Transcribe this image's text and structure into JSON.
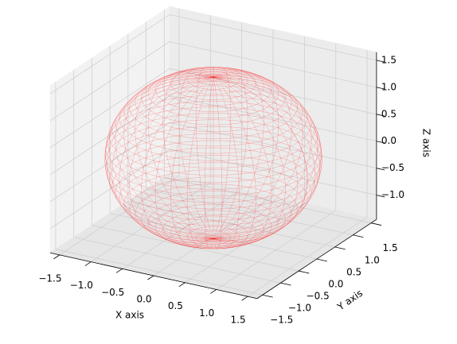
{
  "chart_data": {
    "type": "wireframe_sphere",
    "radius": 1.5,
    "center": [
      0,
      0,
      0
    ],
    "wireframe_lines": 40,
    "color": "#ff0000",
    "view": {
      "elev": 30,
      "azim": -60
    },
    "grid": true,
    "xlabel": "X axis",
    "ylabel": "Y axis",
    "zlabel": "Z axis",
    "xlim": [
      -1.65,
      1.65
    ],
    "ylim": [
      -1.65,
      1.65
    ],
    "zlim": [
      -1.45,
      1.65
    ],
    "xticks": [
      {
        "value": -1.5,
        "label": "−1.5"
      },
      {
        "value": -1.0,
        "label": "−1.0"
      },
      {
        "value": -0.5,
        "label": "−0.5"
      },
      {
        "value": 0,
        "label": "0.0"
      },
      0.5,
      {
        "value": 1.0,
        "label": "1.0"
      },
      1.5
    ],
    "yticks": [
      {
        "value": -1.5,
        "label": "−1.5"
      },
      {
        "value": -1.0,
        "label": "−1.0"
      },
      {
        "value": -0.5,
        "label": "−0.5"
      },
      {
        "value": 0,
        "label": "0.0"
      },
      0.5,
      {
        "value": 1.0,
        "label": "1.0"
      },
      1.5
    ],
    "zticks": [
      {
        "value": -1.0,
        "label": "−1.0"
      },
      {
        "value": -0.5,
        "label": "−0.5"
      },
      {
        "value": 0,
        "label": "0.0"
      },
      0.5,
      {
        "value": 1.0,
        "label": "1.0"
      },
      1.5
    ]
  }
}
